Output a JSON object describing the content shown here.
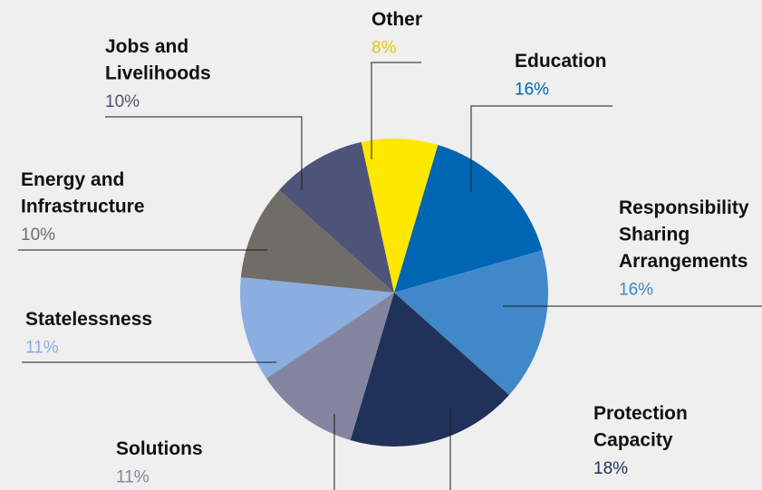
{
  "chart_data": {
    "type": "pie",
    "title": "",
    "slices": [
      {
        "label_lines": [
          "Education"
        ],
        "value": 16,
        "value_label": "16%",
        "color": "#0065b3",
        "pct_color": "#0065b3"
      },
      {
        "label_lines": [
          "Responsibility",
          "Sharing",
          "Arrangements"
        ],
        "value": 16,
        "value_label": "16%",
        "color": "#4088c9",
        "pct_color": "#4088c9"
      },
      {
        "label_lines": [
          "Protection",
          "Capacity"
        ],
        "value": 18,
        "value_label": "18%",
        "color": "#203259",
        "pct_color": "#203259"
      },
      {
        "label_lines": [
          "Solutions"
        ],
        "value": 11,
        "value_label": "11%",
        "color": "#84859f",
        "pct_color": "#84859f"
      },
      {
        "label_lines": [
          "Statelessness"
        ],
        "value": 11,
        "value_label": "11%",
        "color": "#8aaee0",
        "pct_color": "#8aaee0"
      },
      {
        "label_lines": [
          "Energy and",
          "Infrastructure"
        ],
        "value": 10,
        "value_label": "10%",
        "color": "#706d69",
        "pct_color": "#706d69"
      },
      {
        "label_lines": [
          "Jobs and",
          "Livelihoods"
        ],
        "value": 10,
        "value_label": "10%",
        "color": "#4e5479",
        "pct_color": "#4e5479"
      },
      {
        "label_lines": [
          "Other"
        ],
        "value": 8,
        "value_label": "8%",
        "color": "#ffe800",
        "pct_color": "#e8c800"
      }
    ],
    "legend": "none",
    "data_labels": "outside with leader lines"
  }
}
